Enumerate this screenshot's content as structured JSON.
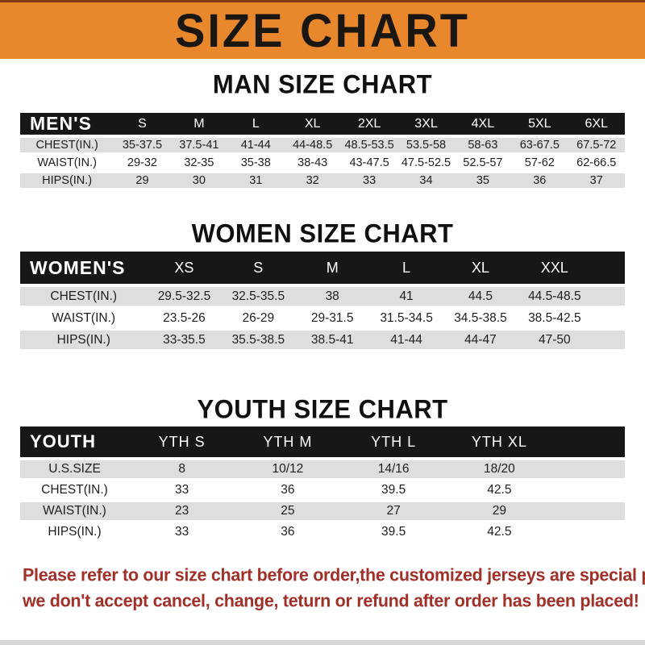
{
  "banner": {
    "title": "SIZE CHART"
  },
  "colors": {
    "banner_bg": "#E8872C",
    "banner_top_border": "#7F3A16",
    "table_header_bar": "#171717",
    "row_alt_gray": "#DFDDDD",
    "footer_text_red": "#A13028"
  },
  "sections": [
    {
      "heading": "MAN SIZE CHART",
      "table": {
        "header_label": "MEN'S",
        "columns": [
          "S",
          "M",
          "L",
          "XL",
          "2XL",
          "3XL",
          "4XL",
          "5XL",
          "6XL"
        ],
        "rows": [
          {
            "label": "CHEST(IN.)",
            "values": [
              "35-37.5",
              "37.5-41",
              "41-44",
              "44-48.5",
              "48.5-53.5",
              "53.5-58",
              "58-63",
              "63-67.5",
              "67.5-72"
            ]
          },
          {
            "label": "WAIST(IN.)",
            "values": [
              "29-32",
              "32-35",
              "35-38",
              "38-43",
              "43-47.5",
              "47.5-52.5",
              "52.5-57",
              "57-62",
              "62-66.5"
            ]
          },
          {
            "label": "HIPS(IN.)",
            "values": [
              "29",
              "30",
              "31",
              "32",
              "33",
              "34",
              "35",
              "36",
              "37"
            ]
          }
        ]
      }
    },
    {
      "heading": "WOMEN SIZE CHART",
      "table": {
        "header_label": "WOMEN'S",
        "columns": [
          "XS",
          "S",
          "M",
          "L",
          "XL",
          "XXL"
        ],
        "rows": [
          {
            "label": "CHEST(IN.)",
            "values": [
              "29.5-32.5",
              "32.5-35.5",
              "38",
              "41",
              "44.5",
              "44.5-48.5"
            ]
          },
          {
            "label": "WAIST(IN.)",
            "values": [
              "23.5-26",
              "26-29",
              "29-31.5",
              "31.5-34.5",
              "34.5-38.5",
              "38.5-42.5"
            ]
          },
          {
            "label": "HIPS(IN.)",
            "values": [
              "33-35.5",
              "35.5-38.5",
              "38.5-41",
              "41-44",
              "44-47",
              "47-50"
            ]
          }
        ]
      }
    },
    {
      "heading": "YOUTH SIZE CHART",
      "table": {
        "header_label": "YOUTH",
        "columns": [
          "YTH S",
          "YTH M",
          "YTH L",
          "YTH XL"
        ],
        "rows": [
          {
            "label": "U.S.SIZE",
            "values": [
              "8",
              "10/12",
              "14/16",
              "18/20"
            ]
          },
          {
            "label": "CHEST(IN.)",
            "values": [
              "33",
              "36",
              "39.5",
              "42.5"
            ]
          },
          {
            "label": "WAIST(IN.)",
            "values": [
              "23",
              "25",
              "27",
              "29"
            ]
          },
          {
            "label": "HIPS(IN.)",
            "values": [
              "33",
              "36",
              "39.5",
              "42.5"
            ]
          }
        ]
      }
    }
  ],
  "footer": {
    "lines": [
      "Please refer to our size chart before order,the customized jerseys are special products,",
      "we don't accept cancel, change, teturn or refund after order has been placed!"
    ]
  }
}
